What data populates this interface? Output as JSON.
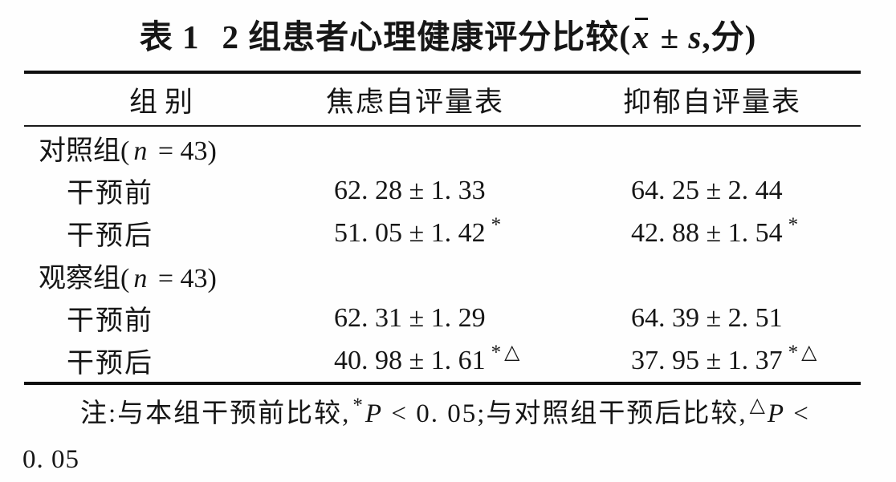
{
  "title": {
    "index": "表 1",
    "text": "2 组患者心理健康评分比较(",
    "mean_symbol": "x",
    "pm": " ± ",
    "sd_symbol": "s",
    "suffix": ",分)"
  },
  "table": {
    "headers": [
      "组别",
      "焦虑自评量表",
      "抑郁自评量表"
    ],
    "rows": [
      {
        "type": "group",
        "pre": "对照组(",
        "n": "n",
        "post": " = 43)"
      },
      {
        "type": "data",
        "label": "干预前",
        "anxiety": "62. 28 ± 1. 33",
        "anxiety_sup": "",
        "depression": "64. 25 ± 2. 44",
        "depression_sup": ""
      },
      {
        "type": "data",
        "label": "干预后",
        "anxiety": "51. 05 ± 1. 42",
        "anxiety_sup": "*",
        "depression": "42. 88 ± 1. 54",
        "depression_sup": "*"
      },
      {
        "type": "group",
        "pre": "观察组(",
        "n": "n",
        "post": " = 43)"
      },
      {
        "type": "data",
        "label": "干预前",
        "anxiety": "62. 31 ± 1. 29",
        "anxiety_sup": "",
        "depression": "64. 39 ± 2. 51",
        "depression_sup": ""
      },
      {
        "type": "data",
        "label": "干预后",
        "anxiety": "40. 98 ± 1. 61",
        "anxiety_sup": "*△",
        "depression": "37. 95 ± 1. 37",
        "depression_sup": "*△"
      }
    ]
  },
  "note": {
    "t1": "注:与本组干预前比较,",
    "sup1": "*",
    "p1": "P",
    "t2": " < 0. 05;与对照组干预后比较,",
    "sup2": "△",
    "p2": "P",
    "t3": " <",
    "line2": "0. 05"
  }
}
